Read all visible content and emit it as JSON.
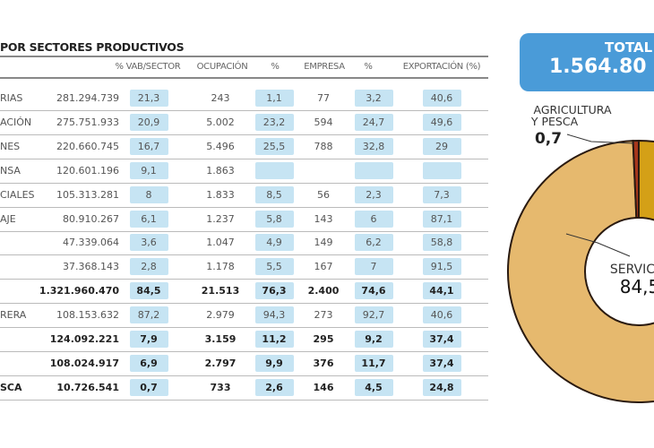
{
  "title": "POR SECTORES PRODUCTIVOS",
  "headers": [
    "% VAB/SECTOR",
    "OCUPACIÓN",
    "%",
    "EMPRESA",
    "%",
    "EXPORTACIÓN (%)"
  ],
  "rows": [
    {
      "label": "RIAS",
      "vab": "281.294.739",
      "pct_vab": "21,3",
      "ocupacion": "243",
      "pct_ocup": "1,1",
      "empresa": "77",
      "pct_emp": "3,2",
      "export": "40,6",
      "bold": false
    },
    {
      "label": "ACIÓN",
      "vab": "275.751.933",
      "pct_vab": "20,9",
      "ocupacion": "5.002",
      "pct_ocup": "23,2",
      "empresa": "594",
      "pct_emp": "24,7",
      "export": "49,6",
      "bold": false
    },
    {
      "label": "NES",
      "vab": "220.660.745",
      "pct_vab": "16,7",
      "ocupacion": "5.496",
      "pct_ocup": "25,5",
      "empresa": "788",
      "pct_emp": "32,8",
      "export": "29",
      "bold": false
    },
    {
      "label": "NSA",
      "vab": "120.601.196",
      "pct_vab": "9,1",
      "ocupacion": "1.863",
      "pct_ocup": "",
      "empresa": "",
      "pct_emp": "",
      "export": "",
      "bold": false
    },
    {
      "label": "CIALES",
      "vab": "105.313.281",
      "pct_vab": "8",
      "ocupacion": "1.833",
      "pct_ocup": "8,5",
      "empresa": "56",
      "pct_emp": "2,3",
      "export": "7,3",
      "bold": false
    },
    {
      "label": "AJE",
      "vab": "80.910.267",
      "pct_vab": "6,1",
      "ocupacion": "1.237",
      "pct_ocup": "5,8",
      "empresa": "143",
      "pct_emp": "6",
      "export": "87,1",
      "bold": false
    },
    {
      "label": "",
      "vab": "47.339.064",
      "pct_vab": "3,6",
      "ocupacion": "1.047",
      "pct_ocup": "4,9",
      "empresa": "149",
      "pct_emp": "6,2",
      "export": "58,8",
      "bold": false
    },
    {
      "label": "",
      "vab": "37.368.143",
      "pct_vab": "2,8",
      "ocupacion": "1.178",
      "pct_ocup": "5,5",
      "empresa": "167",
      "pct_emp": "7",
      "export": "91,5",
      "bold": false
    },
    {
      "label": "",
      "vab": "1.321.960.470",
      "pct_vab": "84,5",
      "ocupacion": "21.513",
      "pct_ocup": "76,3",
      "empresa": "2.400",
      "pct_emp": "74,6",
      "export": "44,1",
      "bold": true
    },
    {
      "label": "RERA",
      "vab": "108.153.632",
      "pct_vab": "87,2",
      "ocupacion": "2.979",
      "pct_ocup": "94,3",
      "empresa": "273",
      "pct_emp": "92,7",
      "export": "40,6",
      "bold": false
    },
    {
      "label": "",
      "vab": "124.092.221",
      "pct_vab": "7,9",
      "ocupacion": "3.159",
      "pct_ocup": "11,2",
      "empresa": "295",
      "pct_emp": "9,2",
      "export": "37,4",
      "bold": true
    },
    {
      "label": "",
      "vab": "108.024.917",
      "pct_vab": "6,9",
      "ocupacion": "2.797",
      "pct_ocup": "9,9",
      "empresa": "376",
      "pct_emp": "11,7",
      "export": "37,4",
      "bold": true
    },
    {
      "label": "SCA",
      "vab": "10.726.541",
      "pct_vab": "0,7",
      "ocupacion": "733",
      "pct_ocup": "2,6",
      "empresa": "146",
      "pct_emp": "4,5",
      "export": "24,8",
      "bold": true
    }
  ],
  "total": {
    "label": "TOTAL",
    "value": "1.564.80"
  },
  "chart_data": {
    "type": "pie",
    "donut": true,
    "slices": [
      {
        "value": 7.9,
        "color": "#d4a017"
      },
      {
        "value": 6.9,
        "color": "#c98a2a"
      },
      {
        "value": 84.5,
        "label": "SERVICI",
        "value_label": "84,5",
        "color": "#e6b96e"
      },
      {
        "value": 0.7,
        "label_line1": "AGRICULTURA",
        "label_line2": "Y PESCA",
        "value_label": "0,7",
        "color": "#a8371c"
      }
    ]
  },
  "colors": {
    "box": "#c6e4f3",
    "total_bg": "#4a9bd8"
  }
}
